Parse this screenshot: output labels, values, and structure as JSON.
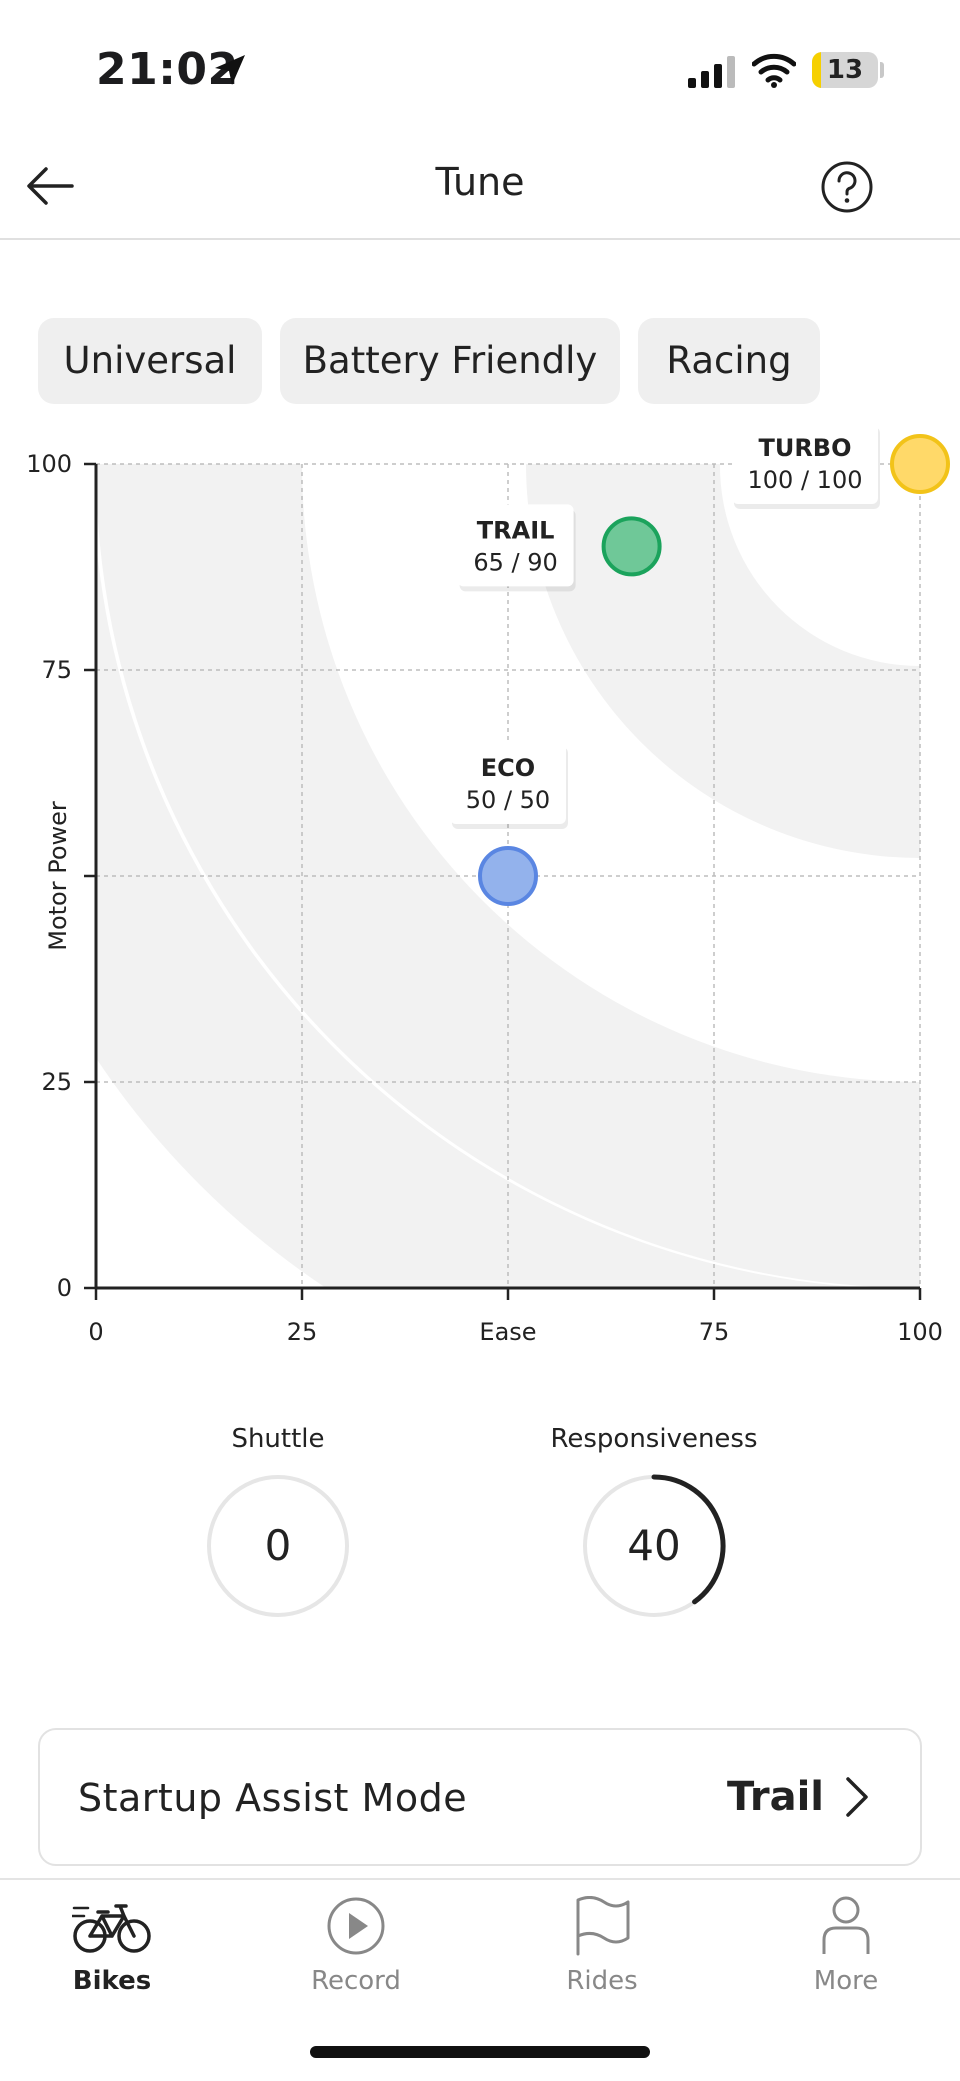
{
  "status": {
    "time": "21:02",
    "battery": "13",
    "battery_level": 0.13
  },
  "header": {
    "title": "Tune"
  },
  "presets": [
    {
      "label": "Universal"
    },
    {
      "label": "Battery Friendly"
    },
    {
      "label": "Racing"
    }
  ],
  "chart_data": {
    "type": "scatter",
    "xlabel": "Ease",
    "ylabel": "Motor Power",
    "xlim": [
      0,
      100
    ],
    "ylim": [
      0,
      100
    ],
    "xticks": [
      "0",
      "25",
      "Ease",
      "75",
      "100"
    ],
    "yticks": [
      "100",
      "75",
      "",
      "25",
      "0"
    ],
    "grid": true,
    "points": [
      {
        "name": "TURBO",
        "label": "100 / 100",
        "x": 100,
        "y": 100,
        "color": "#FFD969",
        "stroke": "#F2C319"
      },
      {
        "name": "TRAIL",
        "label": "65 / 90",
        "x": 65,
        "y": 90,
        "color": "#6FC898",
        "stroke": "#1BA35C"
      },
      {
        "name": "ECO",
        "label": "50 / 50",
        "x": 50,
        "y": 50,
        "color": "#93B2EC",
        "stroke": "#5A86E2"
      }
    ]
  },
  "dials": {
    "shuttle": {
      "label": "Shuttle",
      "value": "0",
      "level": 0
    },
    "responsiveness": {
      "label": "Responsiveness",
      "value": "40",
      "level": 0.4
    }
  },
  "startup_assist": {
    "label": "Startup Assist Mode",
    "value": "Trail"
  },
  "tabbar": {
    "items": [
      {
        "label": "Bikes",
        "icon": "bike-icon",
        "active": true
      },
      {
        "label": "Record",
        "icon": "record-icon",
        "active": false
      },
      {
        "label": "Rides",
        "icon": "flag-icon",
        "active": false
      },
      {
        "label": "More",
        "icon": "person-icon",
        "active": false
      }
    ]
  }
}
